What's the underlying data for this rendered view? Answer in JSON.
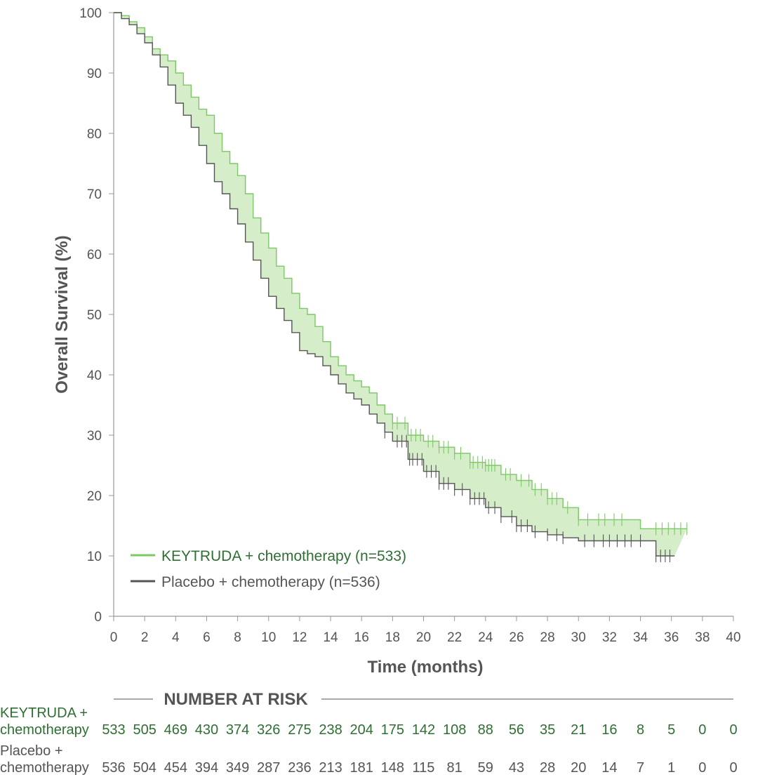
{
  "chart_data": {
    "type": "line",
    "title": "",
    "xlabel": "Time (months)",
    "ylabel": "Overall Survival (%)",
    "xlim": [
      0,
      40
    ],
    "ylim": [
      0,
      100
    ],
    "xticks": [
      0,
      2,
      4,
      6,
      8,
      10,
      12,
      14,
      16,
      18,
      20,
      22,
      24,
      26,
      28,
      30,
      32,
      34,
      36,
      38,
      40
    ],
    "yticks": [
      0,
      10,
      20,
      30,
      40,
      50,
      60,
      70,
      80,
      90,
      100
    ],
    "legend_position": "bottom-left",
    "series": [
      {
        "name": "KEYTRUDA + chemotherapy (n=533)",
        "color": "#7cc865",
        "x": [
          0,
          0.5,
          1,
          1.5,
          2,
          2.5,
          3,
          3.5,
          4,
          4.5,
          5,
          5.5,
          6,
          6.5,
          7,
          7.5,
          8,
          8.5,
          9,
          9.5,
          10,
          10.5,
          11,
          11.5,
          12,
          12.5,
          13,
          13.5,
          14,
          14.5,
          15,
          15.5,
          16,
          16.5,
          17,
          17.5,
          18,
          19,
          20,
          21,
          22,
          23,
          24,
          25,
          26,
          27,
          28,
          29,
          30,
          31,
          32,
          33,
          34,
          35,
          36,
          37
        ],
        "y": [
          100,
          99.5,
          98.5,
          97.5,
          96,
          94,
          93,
          92,
          90,
          88,
          86,
          84,
          83,
          80,
          77,
          75,
          73,
          70,
          66,
          63.5,
          61,
          58,
          56,
          53.5,
          51,
          50,
          48,
          45.5,
          43,
          41.5,
          40,
          39,
          38,
          37,
          35,
          33.5,
          32,
          30,
          29,
          28,
          27,
          25.5,
          25,
          23.5,
          22.5,
          21,
          19.5,
          18,
          16,
          16,
          16,
          16,
          14.5,
          14.5,
          14.5,
          14.5
        ],
        "censor_x": [
          18,
          18.3,
          18.8,
          19.2,
          19.5,
          19.8,
          20.3,
          20.6,
          21,
          21.3,
          21.6,
          22,
          22.4,
          23,
          23.2,
          23.5,
          23.8,
          24,
          24.2,
          24.4,
          24.6,
          25.3,
          25.6,
          26.3,
          26.8,
          27.2,
          27.6,
          28,
          28.3,
          28.6,
          29.3,
          30,
          30.6,
          31.3,
          31.7,
          32.3,
          32.8,
          35,
          35.4,
          35.8,
          36.2,
          36.6,
          37
        ]
      },
      {
        "name": "Placebo + chemotherapy (n=536)",
        "color": "#555555",
        "x": [
          0,
          0.5,
          1,
          1.5,
          2,
          2.5,
          3,
          3.5,
          4,
          4.5,
          5,
          5.5,
          6,
          6.5,
          7,
          7.5,
          8,
          8.5,
          9,
          9.5,
          10,
          10.5,
          11,
          11.5,
          12,
          12.5,
          13,
          13.5,
          14,
          14.5,
          15,
          15.5,
          16,
          16.5,
          17,
          17.5,
          18,
          19,
          20,
          21,
          22,
          23,
          24,
          25,
          26,
          27,
          28,
          29,
          30,
          31,
          32,
          33,
          34,
          35,
          36,
          36.2
        ],
        "y": [
          100,
          99,
          98,
          96.5,
          95,
          93,
          91,
          88,
          85,
          83,
          81,
          78,
          75,
          72,
          70,
          67.5,
          65,
          62,
          59,
          56,
          53,
          51,
          49,
          47,
          44,
          43.5,
          43,
          41.5,
          40,
          38.5,
          37,
          36,
          35,
          33.5,
          32,
          30.5,
          29,
          26,
          24,
          22,
          21,
          19.5,
          18,
          16.5,
          15,
          14,
          13.5,
          13,
          12.5,
          12.5,
          12.5,
          12.5,
          12.5,
          10,
          10,
          10
        ],
        "censor_x": [
          17.5,
          18.3,
          18.6,
          18.9,
          19.1,
          19.3,
          19.6,
          19.9,
          20.2,
          20.5,
          20.8,
          21,
          21.3,
          21.6,
          22,
          22.5,
          23,
          23.3,
          23.6,
          23.9,
          24.2,
          24.6,
          25,
          25.7,
          26,
          26.3,
          26.7,
          27.2,
          28,
          28.6,
          29,
          30.4,
          31,
          31.6,
          32,
          32.5,
          33,
          33.4,
          34,
          35,
          35.3,
          35.6,
          35.9
        ]
      }
    ],
    "risk_table": {
      "title": "NUMBER AT RISK",
      "times": [
        0,
        2,
        4,
        6,
        8,
        10,
        12,
        14,
        16,
        18,
        20,
        22,
        24,
        26,
        28,
        30,
        32,
        34,
        36,
        38,
        40
      ],
      "rows": [
        {
          "label_line1": "KEYTRUDA +",
          "label_line2": "chemotherapy",
          "color": "#2f6f34",
          "values": [
            "533",
            "505",
            "469",
            "430",
            "374",
            "326",
            "275",
            "238",
            "204",
            "175",
            "142",
            "108",
            "88",
            "56",
            "35",
            "21",
            "16",
            "8",
            "5",
            "0",
            "0"
          ]
        },
        {
          "label_line1": "Placebo +",
          "label_line2": "chemotherapy",
          "color": "#555555",
          "values": [
            "536",
            "504",
            "454",
            "394",
            "349",
            "287",
            "236",
            "213",
            "181",
            "148",
            "115",
            "81",
            "59",
            "43",
            "28",
            "20",
            "14",
            "7",
            "1",
            "0",
            "0"
          ]
        }
      ]
    }
  },
  "colors": {
    "fill": "#d5edc9",
    "legend_text_keytruda": "#2f6f34",
    "legend_text_placebo": "#555555"
  }
}
